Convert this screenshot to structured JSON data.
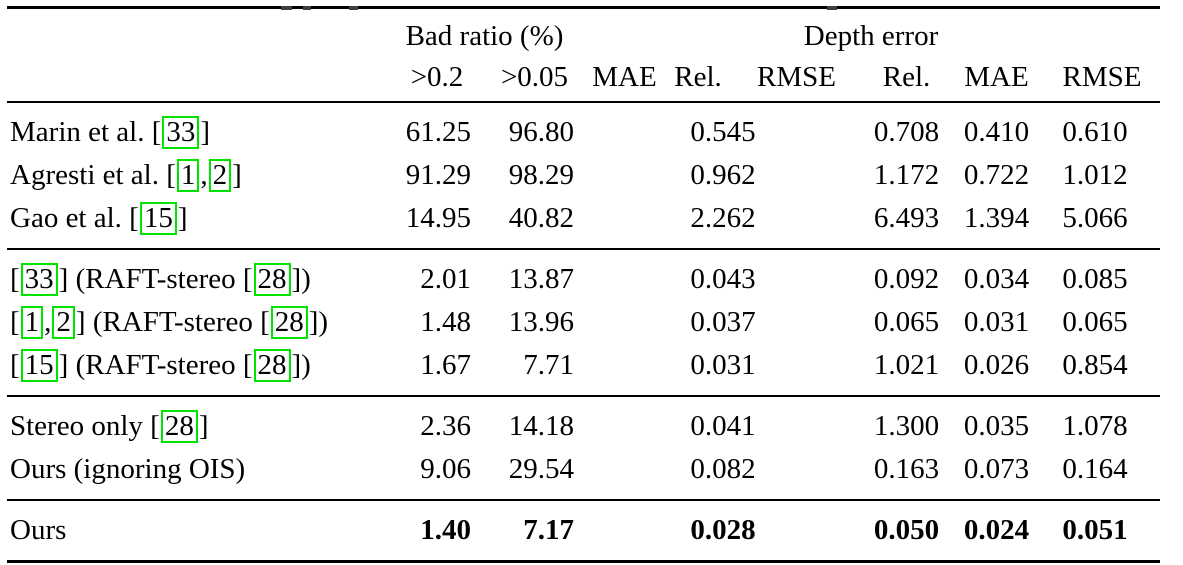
{
  "table": {
    "colors": {
      "citation_box_green": "#00e400",
      "rule_black": "#000000"
    },
    "header": {
      "bad_ratio_group": "Bad ratio (%)",
      "depth_error_group": "Depth error",
      "subs": [
        ">0.2",
        ">0.05",
        "MAE",
        "Rel.",
        "RMSE",
        "Rel.",
        "MAE",
        "RMSE"
      ]
    },
    "sections": [
      {
        "rows": [
          {
            "method": [
              {
                "text": "Marin et al. ["
              },
              {
                "cite": "33"
              },
              {
                "text": "]"
              }
            ],
            "values": [
              "61.25",
              "96.80",
              "0.545",
              "0.708",
              "0.410",
              "0.610"
            ]
          },
          {
            "method": [
              {
                "text": "Agresti et al. ["
              },
              {
                "cite": "1"
              },
              {
                "text": ","
              },
              {
                "cite": "2"
              },
              {
                "text": "]"
              }
            ],
            "values": [
              "91.29",
              "98.29",
              "0.962",
              "1.172",
              "0.722",
              "1.012"
            ]
          },
          {
            "method": [
              {
                "text": "Gao et al. ["
              },
              {
                "cite": "15"
              },
              {
                "text": "]"
              }
            ],
            "values": [
              "14.95",
              "40.82",
              "2.262",
              "6.493",
              "1.394",
              "5.066"
            ]
          }
        ]
      },
      {
        "rows": [
          {
            "method": [
              {
                "text": "["
              },
              {
                "cite": "33"
              },
              {
                "text": "] (RAFT-stereo ["
              },
              {
                "cite": "28"
              },
              {
                "text": "])"
              }
            ],
            "values": [
              "2.01",
              "13.87",
              "0.043",
              "0.092",
              "0.034",
              "0.085"
            ]
          },
          {
            "method": [
              {
                "text": "["
              },
              {
                "cite": "1"
              },
              {
                "text": ","
              },
              {
                "cite": "2"
              },
              {
                "text": "] (RAFT-stereo ["
              },
              {
                "cite": "28"
              },
              {
                "text": "])"
              }
            ],
            "values": [
              "1.48",
              "13.96",
              "0.037",
              "0.065",
              "0.031",
              "0.065"
            ]
          },
          {
            "method": [
              {
                "text": "["
              },
              {
                "cite": "15"
              },
              {
                "text": "] (RAFT-stereo ["
              },
              {
                "cite": "28"
              },
              {
                "text": "])"
              }
            ],
            "values": [
              "1.67",
              "7.71",
              "0.031",
              "1.021",
              "0.026",
              "0.854"
            ]
          }
        ]
      },
      {
        "rows": [
          {
            "method": [
              {
                "text": "Stereo only ["
              },
              {
                "cite": "28"
              },
              {
                "text": "]"
              }
            ],
            "values": [
              "2.36",
              "14.18",
              "0.041",
              "1.300",
              "0.035",
              "1.078"
            ]
          },
          {
            "method": [
              {
                "text": "Ours (ignoring OIS)"
              }
            ],
            "values": [
              "9.06",
              "29.54",
              "0.082",
              "0.163",
              "0.073",
              "0.164"
            ]
          }
        ]
      },
      {
        "rows": [
          {
            "method": [
              {
                "text": "Ours"
              }
            ],
            "bold": true,
            "values": [
              "1.40",
              "7.17",
              "0.028",
              "0.050",
              "0.024",
              "0.051"
            ]
          }
        ]
      }
    ]
  }
}
